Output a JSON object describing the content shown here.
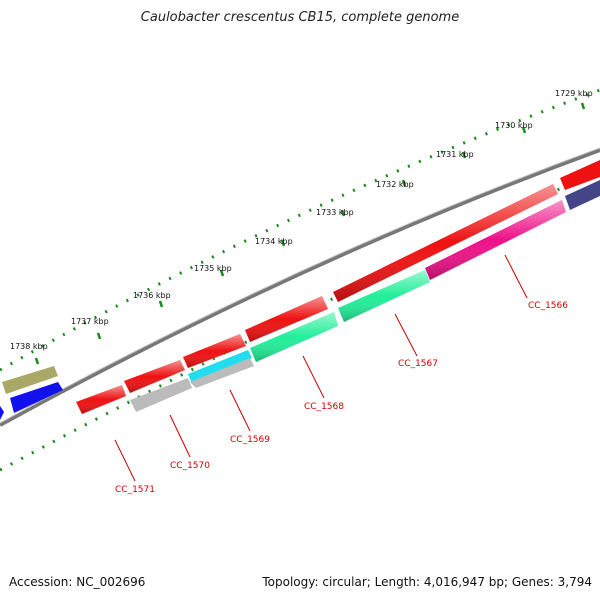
{
  "title": "Caulobacter crescentus CB15, complete genome",
  "footer": {
    "accession": "Accession: NC_002696",
    "topology": "Topology: circular; Length: 4,016,947 bp; Genes: 3,794"
  },
  "kbp_labels": [
    "1729 kbp",
    "1730 kbp",
    "1731 kbp",
    "1732 kbp",
    "1733 kbp",
    "1734 kbp",
    "1735 kbp",
    "1736 kbp",
    "1737 kbp",
    "1738 kbp"
  ],
  "gene_labels": [
    "CC_1566",
    "CC_1567",
    "CC_1568",
    "CC_1569",
    "CC_1570",
    "CC_1571"
  ],
  "colors": {
    "red": "#ee1111",
    "pink": "#ee1188",
    "mint": "#22ee99",
    "cyan": "#22ddee",
    "gray": "#bbbbbb",
    "olive": "#aaa866",
    "blue": "#1111ee",
    "navy": "#444488",
    "tick": "#1a8a1a",
    "backbone": "#777777",
    "label": "#cc0000"
  }
}
